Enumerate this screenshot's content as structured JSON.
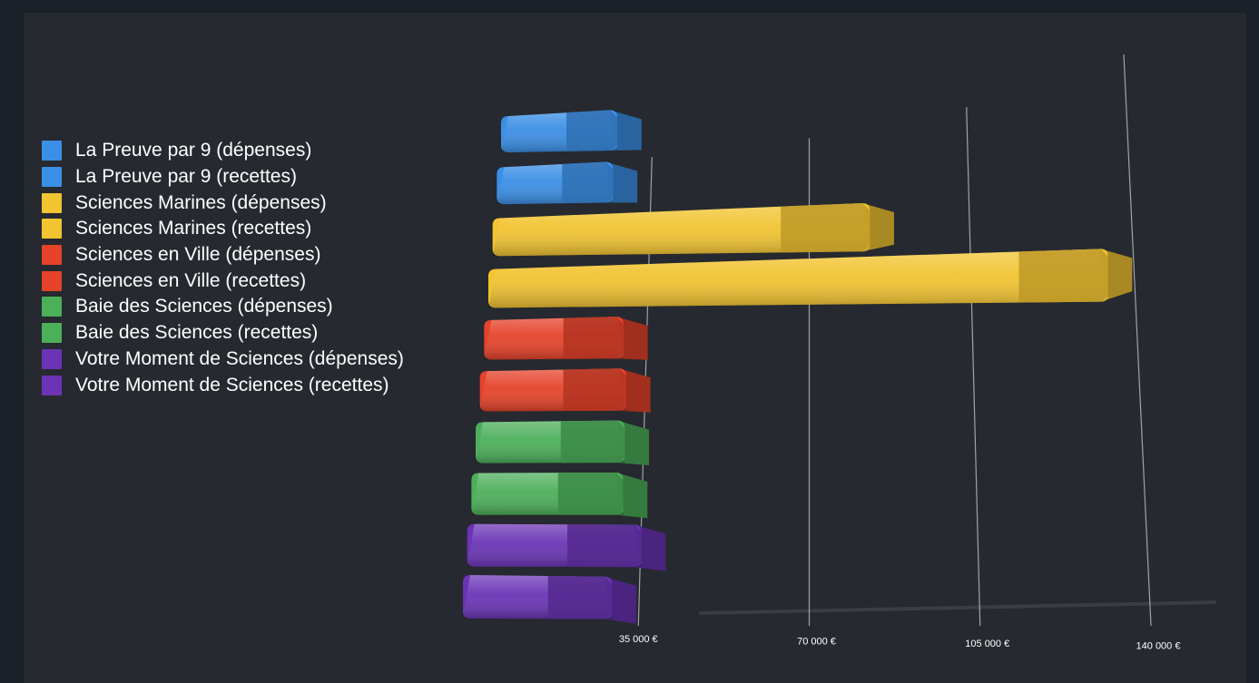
{
  "chart_data": {
    "type": "bar",
    "orientation": "horizontal",
    "style": "3d",
    "series": [
      {
        "name": "La Preuve par 9 (dépenses)",
        "value": 25000,
        "color": "#3b8fe6"
      },
      {
        "name": "La Preuve par 9 (recettes)",
        "value": 23000,
        "color": "#3b8fe6"
      },
      {
        "name": "Sciences Marines (dépenses)",
        "value": 88000,
        "color": "#f2c432"
      },
      {
        "name": "Sciences Marines (recettes)",
        "value": 147000,
        "color": "#f2c432"
      },
      {
        "name": "Sciences en Ville (dépenses)",
        "value": 32000,
        "color": "#e5432a"
      },
      {
        "name": "Sciences en Ville (recettes)",
        "value": 34000,
        "color": "#e5432a"
      },
      {
        "name": "Baie des Sciences (dépenses)",
        "value": 35000,
        "color": "#4caf5a"
      },
      {
        "name": "Baie des Sciences (recettes)",
        "value": 36000,
        "color": "#4caf5a"
      },
      {
        "name": "Votre Moment de Sciences (dépenses)",
        "value": 42000,
        "color": "#6a34b5"
      },
      {
        "name": "Votre Moment de Sciences (recettes)",
        "value": 36000,
        "color": "#6a34b5"
      }
    ],
    "x_ticks": [
      {
        "value": 35000,
        "label": "35 000 €"
      },
      {
        "value": 70000,
        "label": "70 000 €"
      },
      {
        "value": 105000,
        "label": "105 000 €"
      },
      {
        "value": 140000,
        "label": "140 000 €"
      }
    ],
    "xlim": [
      0,
      140000
    ],
    "legend_position": "left",
    "grid": true
  }
}
